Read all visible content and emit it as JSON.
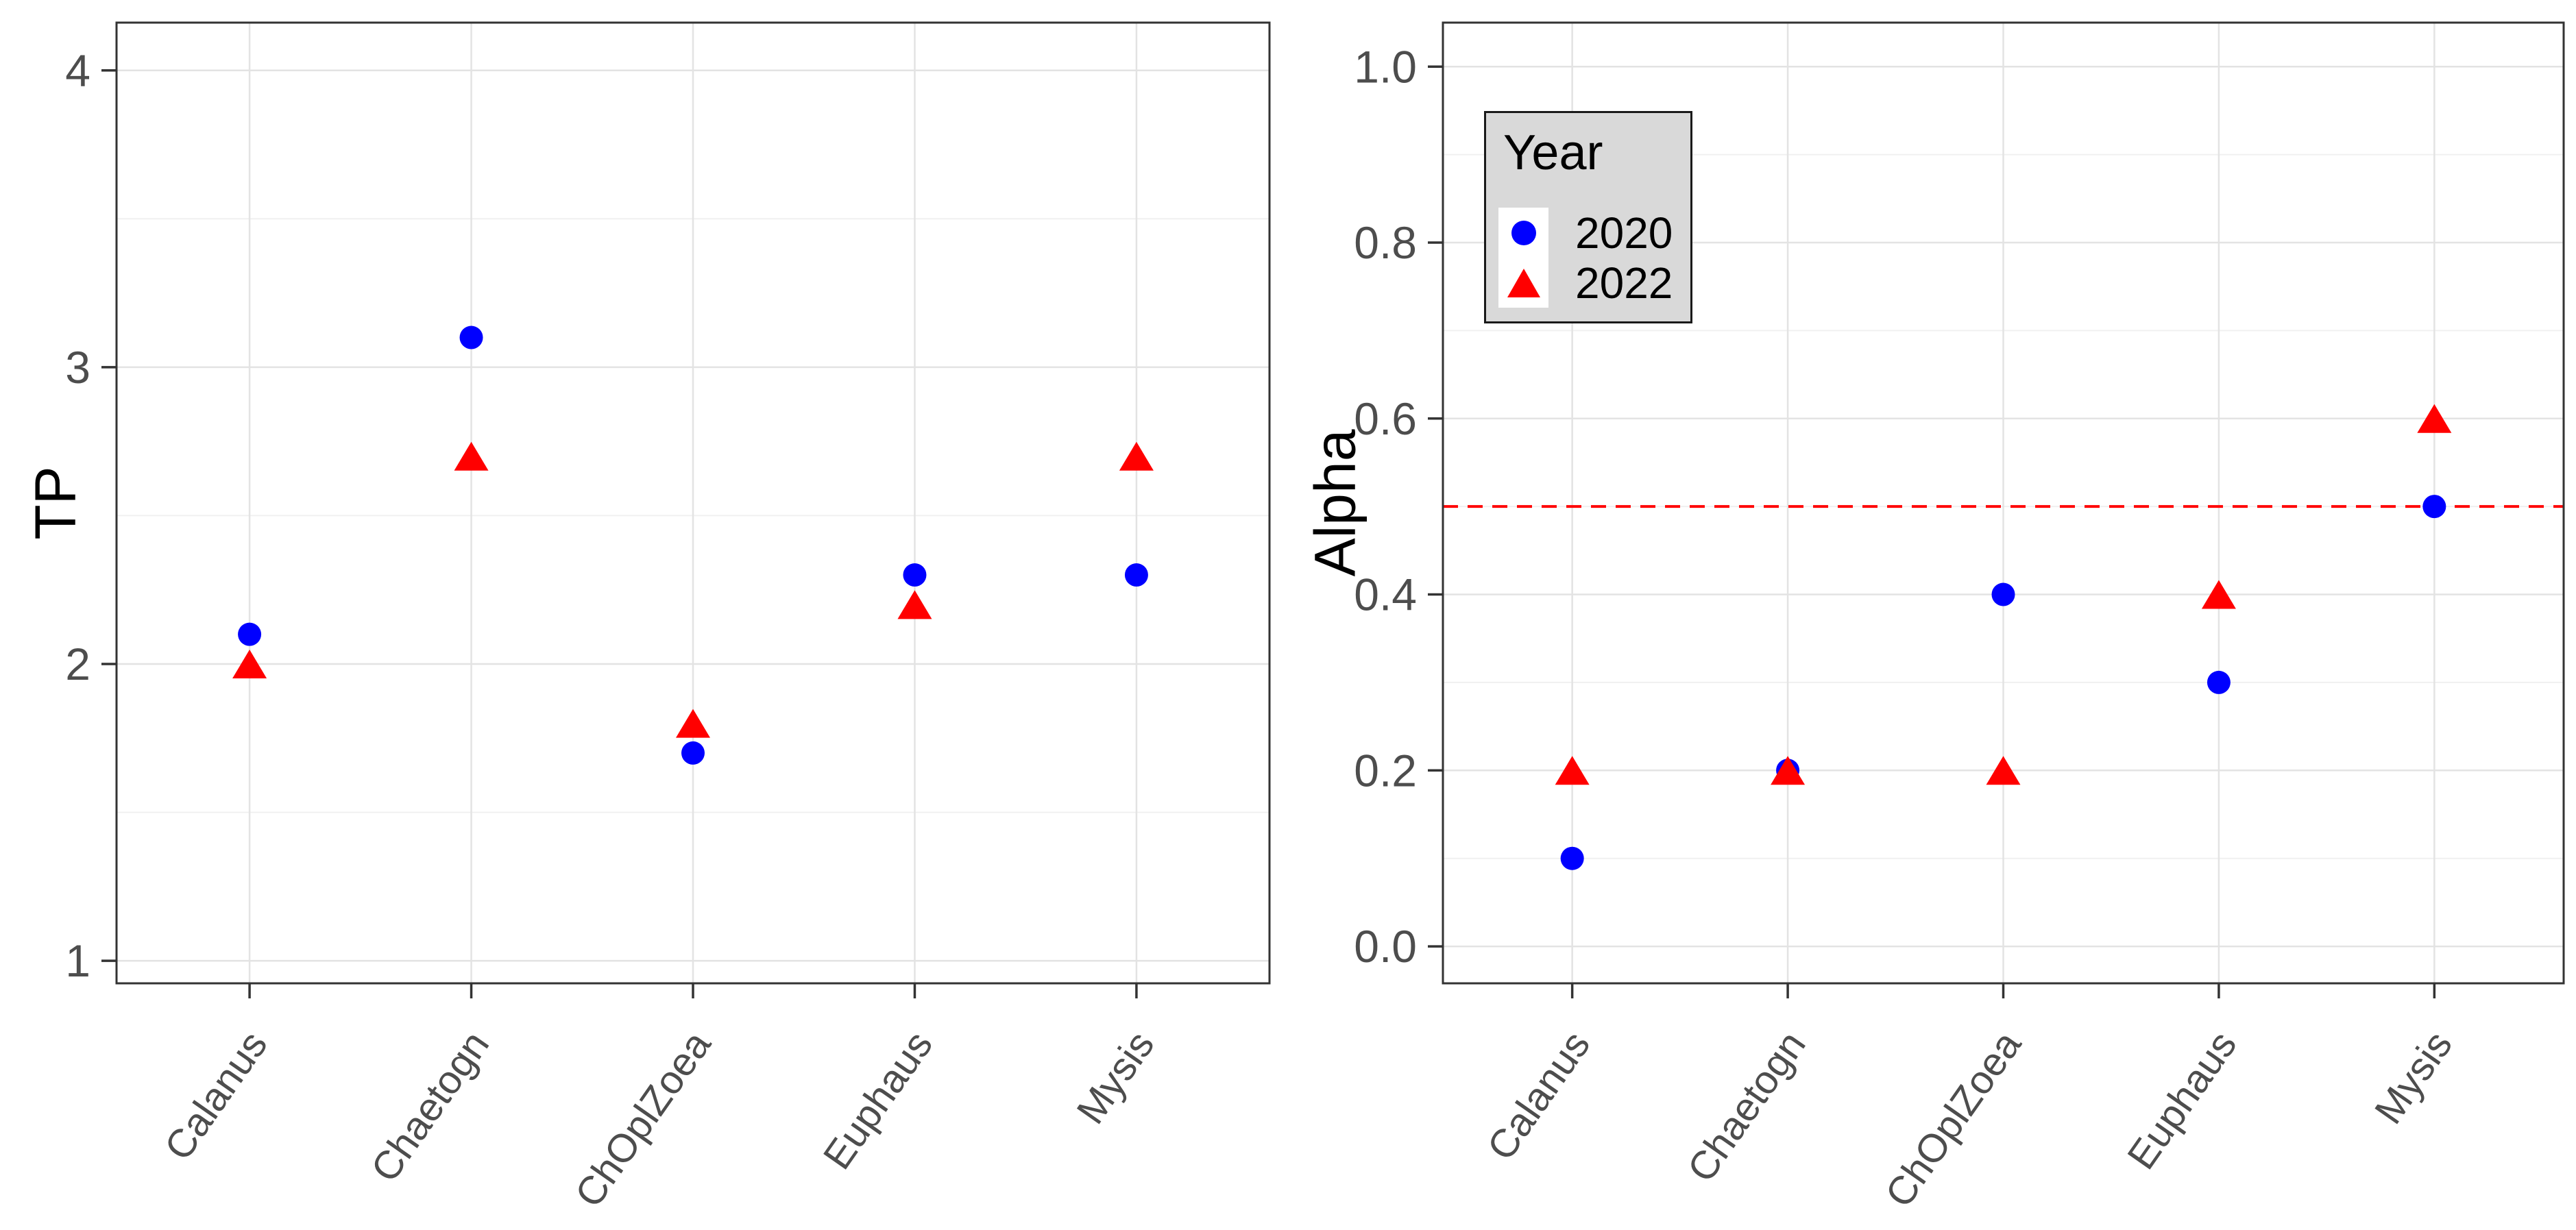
{
  "chart_data": {
    "type": "scatter",
    "title": "",
    "layout_hint": "two side-by-side panels, grouped dot plot, grid major+minor on, legend top-left inside right panel",
    "legend": {
      "title": "Year",
      "position": "top-left-inside-right-panel",
      "entries": [
        {
          "label": "2020",
          "marker": "circle",
          "color": "#0000FF"
        },
        {
          "label": "2022",
          "marker": "triangle",
          "color": "#FF0000"
        }
      ]
    },
    "panels": [
      {
        "ylabel": "TP",
        "categories": [
          "Calanus",
          "Chaetogn",
          "ChOplZoea",
          "Euphaus",
          "Mysis"
        ],
        "yticks": [
          1,
          2,
          3,
          4
        ],
        "ytick_labels": [
          "1",
          "2",
          "3",
          "4"
        ],
        "ylim": [
          0.924,
          4.161
        ],
        "series": [
          {
            "name": "2020",
            "marker": "circle",
            "color": "#0000FF",
            "values": [
              2.1,
              3.1,
              1.7,
              2.3,
              2.3
            ]
          },
          {
            "name": "2022",
            "marker": "triangle",
            "color": "#FF0000",
            "values": [
              2.0,
              2.7,
              1.8,
              2.2,
              2.7
            ]
          }
        ]
      },
      {
        "ylabel": "Alpha",
        "categories": [
          "Calanus",
          "Chaetogn",
          "ChOplZoea",
          "Euphaus",
          "Mysis"
        ],
        "yticks": [
          0.0,
          0.2,
          0.4,
          0.6,
          0.8,
          1.0
        ],
        "ytick_labels": [
          "0.0",
          "0.2",
          "0.4",
          "0.6",
          "0.8",
          "1.0"
        ],
        "ylim": [
          -0.042,
          1.05
        ],
        "hline": {
          "value": 0.5,
          "color": "#FF0000",
          "style": "dashed"
        },
        "series": [
          {
            "name": "2020",
            "marker": "circle",
            "color": "#0000FF",
            "values": [
              0.1,
              0.2,
              0.4,
              0.3,
              0.5
            ]
          },
          {
            "name": "2022",
            "marker": "triangle",
            "color": "#FF0000",
            "values": [
              0.2,
              0.2,
              0.2,
              0.4,
              0.6
            ]
          }
        ]
      }
    ],
    "style_colors": {
      "panel_border": "#333333",
      "tick_label": "#4d4d4d",
      "grid_major": "#e3e3e3",
      "grid_minor": "#f0f0f0",
      "legend_background": "#d9d9d9"
    }
  }
}
